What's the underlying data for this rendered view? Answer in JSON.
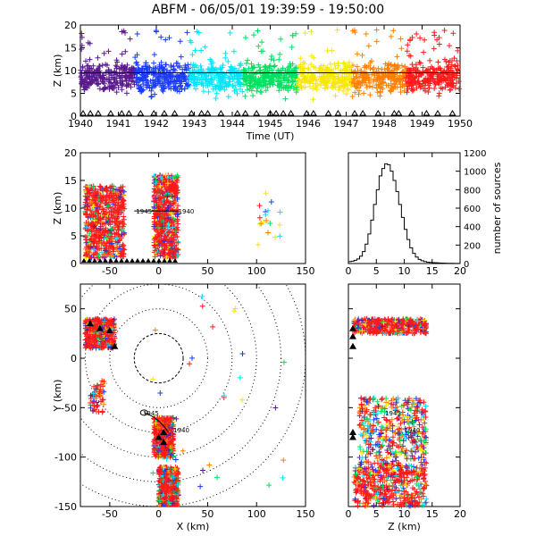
{
  "title": "ABFM - 06/05/01 19:39:59 - 19:50:00",
  "chart_data": [
    {
      "id": "time-height",
      "type": "scatter",
      "xlabel": "Time (UT)",
      "ylabel": "Z (km)",
      "xlim": [
        1940,
        1950
      ],
      "ylim": [
        0,
        20
      ],
      "x_ticks": [
        "1940",
        "1941",
        "1942",
        "1943",
        "1944",
        "1945",
        "1946",
        "1947",
        "1948",
        "1949",
        "1950"
      ],
      "y_ticks": [
        "0",
        "5",
        "10",
        "15",
        "20"
      ],
      "reference_line_z": 9.5,
      "color_scale": [
        "#5a1a8c",
        "#1a3cff",
        "#00e5ff",
        "#00e060",
        "#f8e800",
        "#ff8000",
        "#ff1a1a"
      ],
      "description": "Sources colored by time, dense between 0 and 15 km across whole interval"
    },
    {
      "id": "x-height",
      "type": "scatter",
      "xlabel": "",
      "ylabel": "Z (km)",
      "xlim": [
        -80,
        150
      ],
      "ylim": [
        0,
        20
      ],
      "x_ticks": [
        "-50",
        "0",
        "50",
        "100",
        "150"
      ],
      "y_ticks": [
        "0",
        "5",
        "10",
        "15",
        "20"
      ],
      "clusters": [
        {
          "x_range": [
            -75,
            -35
          ],
          "z_range": [
            1,
            14
          ]
        },
        {
          "x_range": [
            -5,
            20
          ],
          "z_range": [
            1,
            16
          ]
        }
      ],
      "track_labels": [
        "1945",
        "1940"
      ]
    },
    {
      "id": "altitude-histogram",
      "type": "bar",
      "xlabel": "",
      "ylabel": "number of sources",
      "xlim": [
        0,
        20
      ],
      "ylim": [
        0,
        1200
      ],
      "x_ticks": [
        "0",
        "5",
        "10",
        "15",
        "20"
      ],
      "y_ticks": [
        "0",
        "200",
        "400",
        "600",
        "800",
        "1000",
        "1200"
      ],
      "bin_width": 0.5,
      "bins": [
        0.25,
        0.75,
        1.25,
        1.75,
        2.25,
        2.75,
        3.25,
        3.75,
        4.25,
        4.75,
        5.25,
        5.75,
        6.25,
        6.75,
        7.25,
        7.75,
        8.25,
        8.75,
        9.25,
        9.75,
        10.25,
        10.75,
        11.25,
        11.75,
        12.25,
        12.75,
        13.25,
        13.75,
        14.25,
        14.75,
        15.25,
        15.75,
        16.25,
        16.75,
        17.25,
        17.75,
        18.25,
        18.75,
        19.25,
        19.75
      ],
      "values": [
        20,
        25,
        35,
        50,
        80,
        130,
        210,
        320,
        470,
        640,
        800,
        950,
        1030,
        1080,
        1070,
        1000,
        900,
        780,
        640,
        500,
        370,
        260,
        170,
        110,
        70,
        45,
        30,
        20,
        15,
        12,
        10,
        8,
        6,
        5,
        4,
        3,
        2,
        2,
        1,
        1
      ]
    },
    {
      "id": "plan-view",
      "type": "scatter",
      "xlabel": "X (km)",
      "ylabel": "Y (km)",
      "xlim": [
        -80,
        150
      ],
      "ylim": [
        -150,
        75
      ],
      "x_ticks": [
        "-50",
        "0",
        "50",
        "100",
        "150"
      ],
      "y_ticks": [
        "50",
        "0",
        "-50",
        "-100",
        "-150"
      ],
      "range_rings_km": [
        25,
        50,
        75,
        100,
        125,
        150
      ],
      "clusters": [
        {
          "x_range": [
            -75,
            -45
          ],
          "y_range": [
            10,
            40
          ]
        },
        {
          "x_range": [
            -70,
            -55
          ],
          "y_range": [
            -55,
            -20
          ]
        },
        {
          "x_range": [
            -5,
            15
          ],
          "y_range": [
            -100,
            -60
          ]
        },
        {
          "x_range": [
            0,
            20
          ],
          "y_range": [
            -150,
            -110
          ]
        }
      ],
      "track_labels": [
        "1945",
        "1940"
      ]
    },
    {
      "id": "z-y",
      "type": "scatter",
      "xlabel": "Z (km)",
      "ylabel": "",
      "xlim": [
        0,
        20
      ],
      "ylim": [
        -150,
        75
      ],
      "x_ticks": [
        "0",
        "5",
        "10",
        "15",
        "20"
      ],
      "y_ticks": [
        "50",
        "0",
        "-50",
        "-100",
        "-150"
      ],
      "track_labels": [
        "1945",
        "1940"
      ]
    }
  ]
}
